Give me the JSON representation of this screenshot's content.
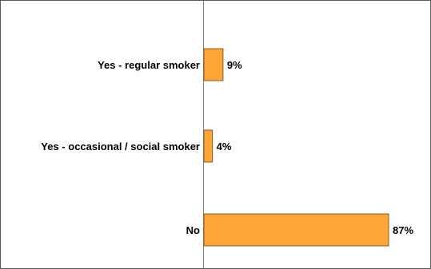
{
  "chart_data": {
    "type": "bar",
    "orientation": "horizontal",
    "categories": [
      "Yes - regular smoker",
      "Yes - occasional / social smoker",
      "No"
    ],
    "values": [
      9,
      4,
      87
    ],
    "value_labels": [
      "9%",
      "4%",
      "87%"
    ],
    "xlim": [
      0,
      100
    ],
    "grid": false,
    "legend": "none",
    "bar_color": "#FFA436",
    "bar_edge_color": "#8a5a1a",
    "axis_color": "#808080"
  }
}
